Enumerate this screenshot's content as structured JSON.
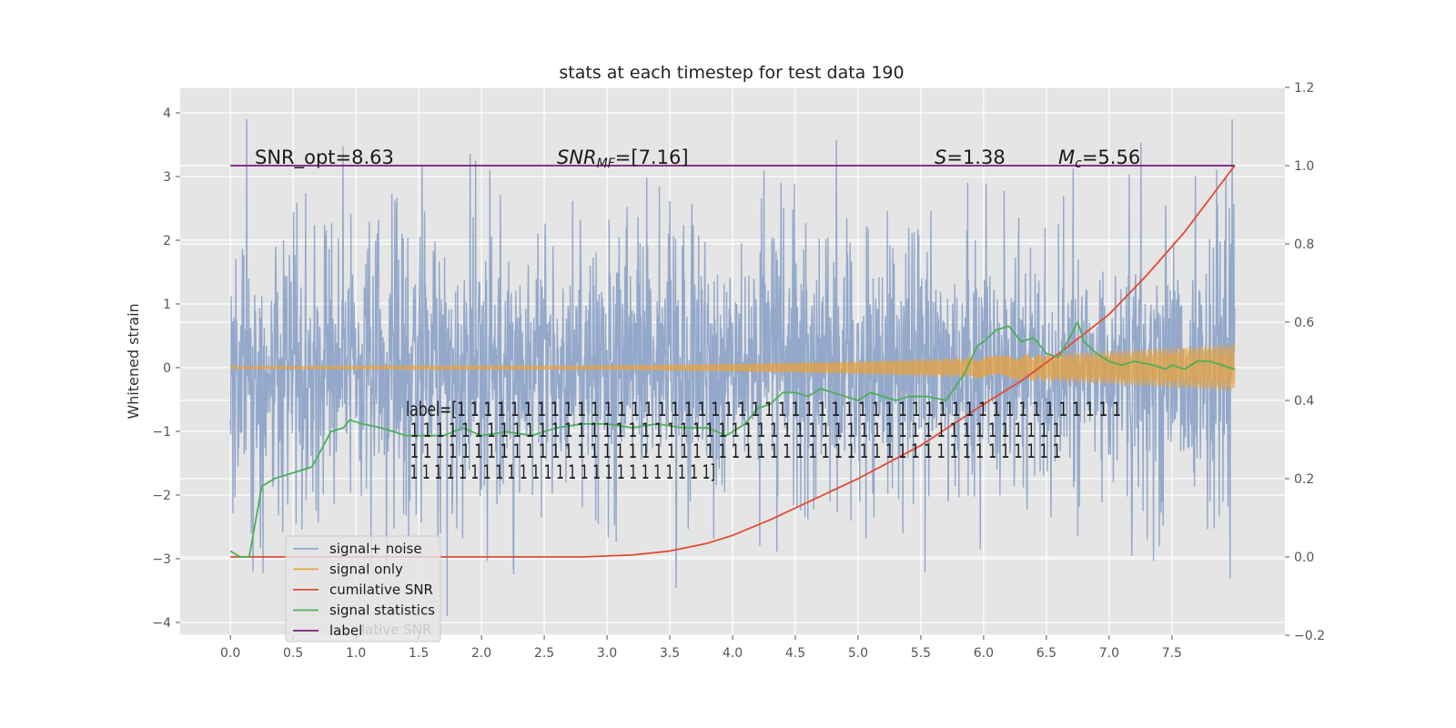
{
  "chart_data": {
    "type": "line",
    "title": "stats at each timestep for test data 190",
    "xlabel": "",
    "ylabel": "Whitened strain",
    "xlim": [
      -0.4,
      8.4
    ],
    "ylim": [
      -4.2,
      4.4
    ],
    "y2lim": [
      -0.2,
      1.2
    ],
    "xticks": [
      0.0,
      0.5,
      1.0,
      1.5,
      2.0,
      2.5,
      3.0,
      3.5,
      4.0,
      4.5,
      5.0,
      5.5,
      6.0,
      6.5,
      7.0,
      7.5
    ],
    "xtick_labels": [
      "0.0",
      "0.5",
      "1.0",
      "1.5",
      "2.0",
      "2.5",
      "3.0",
      "3.5",
      "4.0",
      "4.5",
      "5.0",
      "5.5",
      "6.0",
      "6.5",
      "7.0",
      "7.5"
    ],
    "yticks": [
      -4,
      -3,
      -2,
      -1,
      0,
      1,
      2,
      3,
      4
    ],
    "ytick_labels": [
      "−4",
      "−3",
      "−2",
      "−1",
      "0",
      "1",
      "2",
      "3",
      "4"
    ],
    "y2ticks": [
      -0.2,
      0.0,
      0.2,
      0.4,
      0.6,
      0.8,
      1.0,
      1.2
    ],
    "y2tick_labels": [
      "−0.2",
      "0.0",
      "0.2",
      "0.4",
      "0.6",
      "0.8",
      "1.0",
      "1.2"
    ],
    "grid": true,
    "legend_placement": "lower-left",
    "colors": {
      "signal_noise": "#8ea4c8",
      "signal_only": "#e8a33d",
      "cumulative_snr": "#e24a33",
      "signal_statistics": "#4caf5a",
      "label": "#7a1a78",
      "plot_bg": "#e5e5e5",
      "grid": "#ffffff"
    },
    "legend": [
      {
        "key": "signal_noise",
        "text": "signal+ noise"
      },
      {
        "key": "signal_only",
        "text": "signal only"
      },
      {
        "key": "cumulative_snr",
        "text": "cumilative SNR"
      },
      {
        "key": "signal_statistics",
        "text": "signal statistics"
      },
      {
        "key": "label",
        "text": "label"
      }
    ],
    "legend_ghost_text": "lative SNR",
    "annotations": {
      "snr_opt": "SNR_opt=8.63",
      "snr_mf_main": "SNR",
      "snr_mf_sub": "MF",
      "snr_mf_rest": "=[7.16]",
      "s_main": "S",
      "s_rest": "=1.38",
      "mc_main": "M",
      "mc_sub": "c",
      "mc_rest": "=5.56"
    },
    "label_text_lines": [
      "label=[1 1 1 1 1 1 1 1 1 1 1 1 1 1 1 1 1 1 1 1 1 1 1 1 1 1 1 1 1 1 1 1 1 1 1 1 1 1 1 1 1 1 1 1 1 1 1 1 1 1",
      " 1 1 1 1 1 1 1 1 1 1 1 1 1 1 1 1 1 1 1 1 1 1 1 1 1 1 1 1 1 1 1 1 1 1 1 1 1 1 1 1 1 1 1 1 1 1 1 1 1 1 1",
      " 1 1 1 1 1 1 1 1 1 1 1 1 1 1 1 1 1 1 1 1 1 1 1 1 1 1 1 1 1 1 1 1 1 1 1 1 1 1 1 1 1 1 1 1 1 1 1 1 1 1 1",
      " 1 1 1 1 1 1 1 1 1 1 1 1 1 1 1 1 1 1 1 1 1 1 1 1 1]"
    ],
    "series": [
      {
        "key": "signal_noise",
        "kind": "noise",
        "x_range": [
          0.0,
          8.0
        ],
        "envelope": [
          1.5,
          3.9
        ]
      },
      {
        "key": "signal_only",
        "kind": "chirp",
        "x_range": [
          0.0,
          8.0
        ],
        "amplitude": {
          "x": [
            0.0,
            3.0,
            4.0,
            5.0,
            6.0,
            7.0,
            8.0
          ],
          "y": [
            0.02,
            0.03,
            0.06,
            0.1,
            0.17,
            0.26,
            0.37
          ]
        }
      },
      {
        "key": "cumulative_snr",
        "axis": "right",
        "x": [
          0.0,
          1.0,
          2.0,
          2.8,
          3.2,
          3.5,
          3.8,
          4.0,
          4.3,
          4.6,
          5.0,
          5.5,
          6.0,
          6.3,
          6.6,
          7.0,
          7.3,
          7.6,
          8.0
        ],
        "y": [
          0.0,
          0.0,
          0.0,
          0.0,
          0.005,
          0.015,
          0.035,
          0.055,
          0.095,
          0.14,
          0.2,
          0.285,
          0.39,
          0.45,
          0.52,
          0.62,
          0.72,
          0.83,
          1.0
        ]
      },
      {
        "key": "signal_statistics",
        "axis": "right",
        "x": [
          0.0,
          0.08,
          0.15,
          0.25,
          0.35,
          0.45,
          0.55,
          0.65,
          0.8,
          0.9,
          0.95,
          1.05,
          1.2,
          1.3,
          1.4,
          1.5,
          1.7,
          1.85,
          2.0,
          2.2,
          2.4,
          2.6,
          2.8,
          3.0,
          3.2,
          3.4,
          3.6,
          3.8,
          3.95,
          4.1,
          4.2,
          4.3,
          4.4,
          4.5,
          4.6,
          4.7,
          4.8,
          4.9,
          5.0,
          5.1,
          5.2,
          5.3,
          5.4,
          5.55,
          5.7,
          5.85,
          5.95,
          6.0,
          6.1,
          6.2,
          6.3,
          6.4,
          6.5,
          6.6,
          6.7,
          6.75,
          6.8,
          6.9,
          7.0,
          7.1,
          7.2,
          7.35,
          7.45,
          7.5,
          7.6,
          7.7,
          7.8,
          8.0
        ],
        "y": [
          0.015,
          0.0,
          0.0,
          0.18,
          0.2,
          0.21,
          0.22,
          0.23,
          0.32,
          0.33,
          0.35,
          0.34,
          0.33,
          0.32,
          0.31,
          0.31,
          0.31,
          0.33,
          0.31,
          0.32,
          0.31,
          0.33,
          0.34,
          0.34,
          0.33,
          0.34,
          0.33,
          0.33,
          0.31,
          0.34,
          0.38,
          0.39,
          0.42,
          0.42,
          0.41,
          0.43,
          0.42,
          0.41,
          0.4,
          0.42,
          0.41,
          0.4,
          0.41,
          0.41,
          0.4,
          0.47,
          0.54,
          0.55,
          0.58,
          0.59,
          0.55,
          0.56,
          0.52,
          0.51,
          0.57,
          0.6,
          0.55,
          0.52,
          0.5,
          0.49,
          0.5,
          0.49,
          0.48,
          0.49,
          0.48,
          0.5,
          0.5,
          0.48
        ]
      },
      {
        "key": "label",
        "axis": "right",
        "x": [
          0.0,
          8.0
        ],
        "y": [
          1.0,
          1.0
        ]
      }
    ]
  }
}
